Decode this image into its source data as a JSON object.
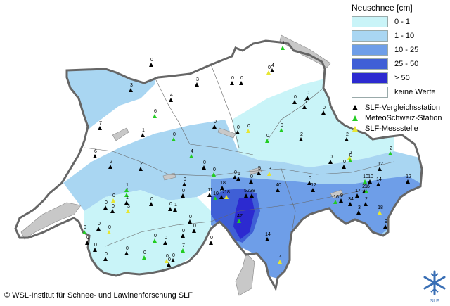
{
  "legend": {
    "title": "Neuschnee [cm]",
    "classes": [
      {
        "label": "0 - 1",
        "color": "#c9f4f8"
      },
      {
        "label": "1 - 10",
        "color": "#a9d6f2"
      },
      {
        "label": "10 - 25",
        "color": "#6e9ee8"
      },
      {
        "label": "25 - 50",
        "color": "#3f5fd6"
      },
      {
        "label": "> 50",
        "color": "#2c2ad0"
      },
      {
        "label": "keine Werte",
        "color": "#ffffff"
      }
    ],
    "symbols": [
      {
        "label": "SLF-Vergleichsstation",
        "color": "#000000",
        "icon": "black-triangle-icon"
      },
      {
        "label": "MeteoSchweiz-Station",
        "color": "#22cc22",
        "icon": "green-triangle-icon"
      },
      {
        "label": "SLF-Messstelle",
        "color": "#e6e633",
        "icon": "yellow-triangle-icon"
      }
    ]
  },
  "copyright": "© WSL-Institut für Schnee- und Lawinenforschung SLF",
  "logo_text": "SLF",
  "station_values": [
    "1",
    "0",
    "3",
    "4",
    "3",
    "6",
    "0",
    "0",
    "7",
    "1",
    "0",
    "6",
    "2",
    "0",
    "0",
    "0",
    "2",
    "0",
    "0",
    "2",
    "1",
    "0",
    "1",
    "0",
    "0",
    "4",
    "5",
    "1",
    "3",
    "12",
    "10",
    "10",
    "14",
    "12",
    "0",
    "0",
    "0",
    "0",
    "0",
    "2",
    "1",
    "0",
    "3",
    "0",
    "1",
    "0",
    "0",
    "0",
    "0",
    "0",
    "0",
    "0",
    "0",
    "0",
    "0",
    "0",
    "0",
    "0",
    "0",
    "0",
    "2",
    "0",
    "0",
    "0",
    "0",
    "0",
    "4",
    "0",
    "0",
    "0",
    "7",
    "0",
    "0",
    "11",
    "18",
    "10",
    "12",
    "18",
    "52",
    "38",
    "47",
    "40",
    "12",
    "14",
    "4",
    "16",
    "9",
    "34",
    "17",
    "21",
    "16",
    "18",
    "9",
    "3",
    "2",
    "0",
    "0",
    "0"
  ]
}
